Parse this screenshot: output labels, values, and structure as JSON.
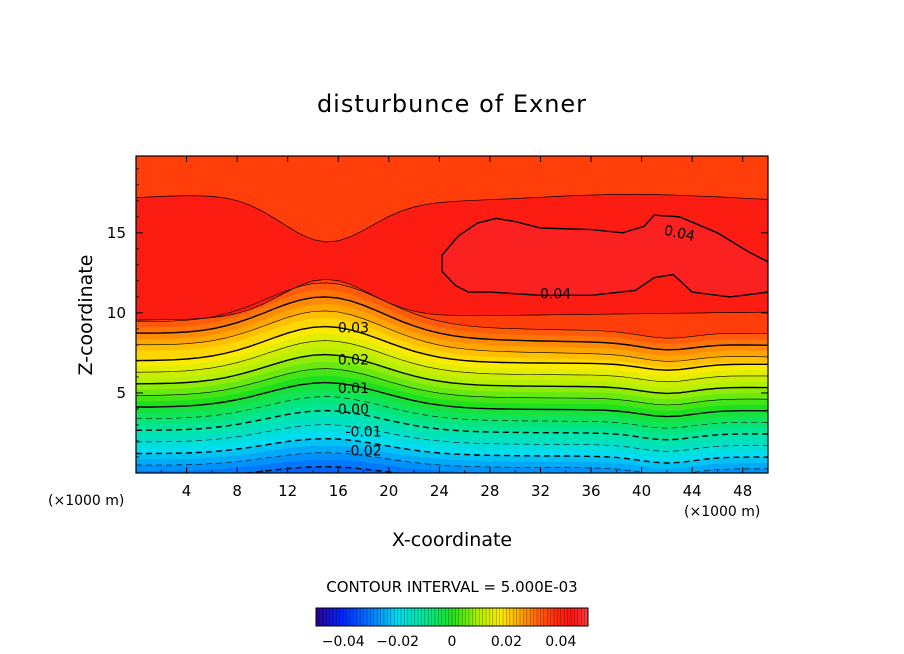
{
  "chart_data": {
    "type": "contour",
    "title": "disturbunce of Exner",
    "xlabel": "X-coordinate",
    "ylabel": "Z-coordinate",
    "x_unit_left": "(×1000 m)",
    "x_unit_right": "(×1000 m)",
    "xlim": [
      0,
      50
    ],
    "ylim": [
      0,
      19.8
    ],
    "x_ticks": [
      4,
      8,
      12,
      16,
      20,
      24,
      28,
      32,
      36,
      40,
      44,
      48
    ],
    "y_ticks": [
      5,
      10,
      15
    ],
    "contour_interval_text": "CONTOUR INTERVAL = 5.000E-03",
    "contour_interval": 0.005,
    "negative_contours": "dashed",
    "contour_labels": [
      {
        "text": "0.04",
        "x": 43.0,
        "y": 15.0
      },
      {
        "text": "0.04",
        "x": 33.2,
        "y": 11.2
      },
      {
        "text": "0.03",
        "x": 17.2,
        "y": 9.1
      },
      {
        "text": "0.02",
        "x": 17.2,
        "y": 7.1
      },
      {
        "text": "0.01",
        "x": 17.2,
        "y": 5.3
      },
      {
        "text": "0.00",
        "x": 17.2,
        "y": 4.0
      },
      {
        "text": "-0.01",
        "x": 18.0,
        "y": 2.6
      },
      {
        "text": "-0.02",
        "x": 18.0,
        "y": 1.4
      }
    ],
    "colorbar": {
      "range": [
        -0.05,
        0.05
      ],
      "tick_labels": [
        "-0.04",
        "-0.02",
        "0",
        "0.02",
        "0.04"
      ],
      "tick_values": [
        -0.04,
        -0.02,
        0,
        0.02,
        0.04
      ],
      "colormap": "rainbow (blue → cyan → green → yellow → orange → red)"
    },
    "grid": false
  }
}
